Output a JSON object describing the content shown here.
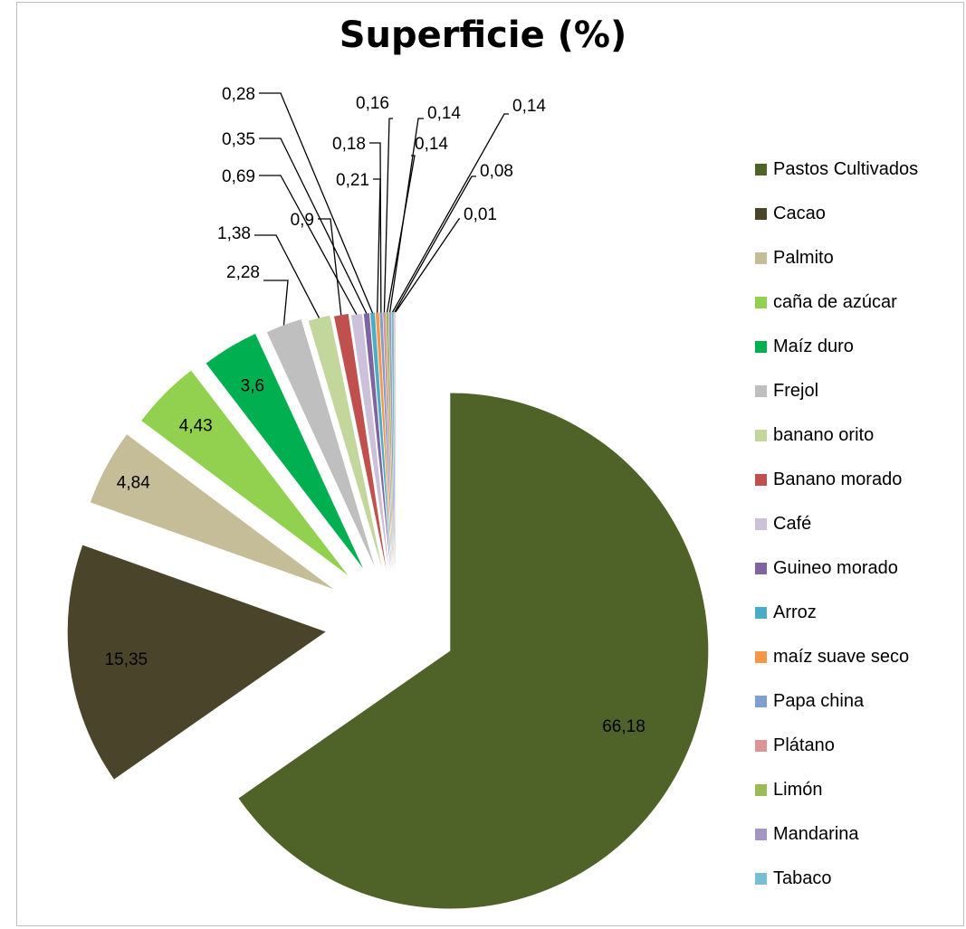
{
  "chart_data": {
    "type": "pie",
    "title": "Superficie (%)",
    "legend_position": "right",
    "slices": [
      {
        "name": "Pastos Cultivados",
        "value": 66.18,
        "label": "66,18",
        "color": "#4f6228"
      },
      {
        "name": "Cacao",
        "value": 15.35,
        "label": "15,35",
        "color": "#4a452a"
      },
      {
        "name": "Palmito",
        "value": 4.84,
        "label": "4,84",
        "color": "#c4bd97"
      },
      {
        "name": "caña de azúcar",
        "value": 4.43,
        "label": "4,43",
        "color": "#92d050"
      },
      {
        "name": "Maíz duro",
        "value": 3.6,
        "label": "3,6",
        "color": "#00b050"
      },
      {
        "name": "Frejol",
        "value": 2.28,
        "label": "2,28",
        "color": "#bfbfbf"
      },
      {
        "name": "banano orito",
        "value": 1.38,
        "label": "1,38",
        "color": "#c3d69b"
      },
      {
        "name": "Banano morado",
        "value": 0.9,
        "label": "0,9",
        "color": "#c0504d"
      },
      {
        "name": "Café",
        "value": 0.69,
        "label": "0,69",
        "color": "#ccc1da"
      },
      {
        "name": "Guineo morado",
        "value": 0.35,
        "label": "0,35",
        "color": "#8064a2"
      },
      {
        "name": "Arroz",
        "value": 0.28,
        "label": "0,28",
        "color": "#4bacc6"
      },
      {
        "name": "maíz suave seco",
        "value": 0.21,
        "label": "0,21",
        "color": "#f79646"
      },
      {
        "name": "Papa china",
        "value": 0.18,
        "label": "0,18",
        "color": "#7f9fcf"
      },
      {
        "name": "Plátano",
        "value": 0.16,
        "label": "0,16",
        "color": "#d99694"
      },
      {
        "name": "Limón",
        "value": 0.14,
        "label": "0,14",
        "color": "#9bbb59"
      },
      {
        "name": "Mandarina",
        "value": 0.14,
        "label": "0,14",
        "color": "#a496c4"
      },
      {
        "name": "Tabaco",
        "value": 0.14,
        "label": "0,14",
        "color": "#78bfd3"
      },
      {
        "name": "",
        "value": 0.08,
        "label": "0,08",
        "color": "#e6b9b8"
      },
      {
        "name": "",
        "value": 0.01,
        "label": "0,01",
        "color": "#d7e4bd"
      }
    ]
  }
}
